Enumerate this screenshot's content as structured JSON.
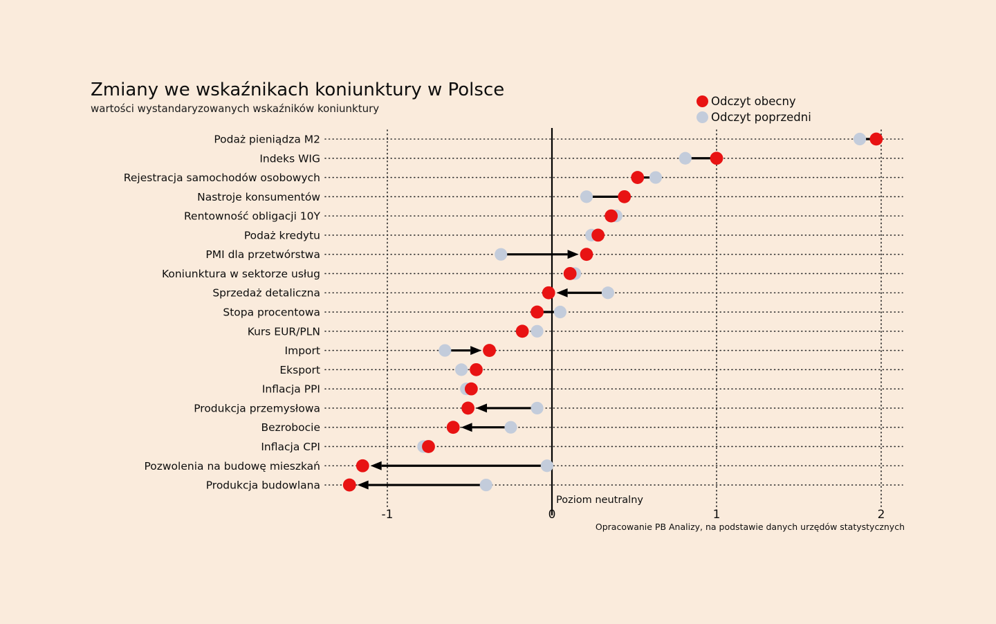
{
  "title": "Zmiany we wskaźnikach koniunktury w Polsce",
  "subtitle": "wartości wystandaryzowanych wskaźników koniunktury",
  "legend": {
    "current_label": "Odczyt obecny",
    "previous_label": "Odczyt poprzedni"
  },
  "zero_line_label": "Poziom neutralny",
  "source_note": "Opracowanie PB Analizy, na podstawie danych urzędów statystycznych",
  "colors": {
    "background": "#FAEBDC",
    "current_dot": "#E81313",
    "previous_dot": "#C3CCDB",
    "connector": "#000000",
    "grid": "#2b2b2b",
    "text": "#0d0d0d"
  },
  "chart_data": {
    "type": "scatter",
    "subtype": "dumbbell-dot-plot",
    "title": "Zmiany we wskaźnikach koniunktury w Polsce",
    "xlabel": "",
    "ylabel": "",
    "xlim": [
      -1.4,
      2.15
    ],
    "x_ticks": [
      -1,
      0,
      1,
      2
    ],
    "grid": "dotted",
    "legend_position": "top-right",
    "categories": [
      "Podaż pieniądza M2",
      "Indeks WIG",
      "Rejestracja samochodów osobowych",
      "Nastroje konsumentów",
      "Rentowność obligacji 10Y",
      "Podaż kredytu",
      "PMI dla przetwórstwa",
      "Koniunktura w sektorze usług",
      "Sprzedaż detaliczna",
      "Stopa procentowa",
      "Kurs EUR/PLN",
      "Import",
      "Eksport",
      "Inflacja PPI",
      "Produkcja przemysłowa",
      "Bezrobocie",
      "Inflacja CPI",
      "Pozwolenia na budowę mieszkań",
      "Produkcja budowlana"
    ],
    "series": [
      {
        "name": "Odczyt obecny",
        "values": [
          1.97,
          1.0,
          0.52,
          0.44,
          0.36,
          0.28,
          0.21,
          0.11,
          -0.02,
          -0.09,
          -0.18,
          -0.38,
          -0.46,
          -0.49,
          -0.51,
          -0.6,
          -0.75,
          -1.15,
          -1.23
        ]
      },
      {
        "name": "Odczyt poprzedni",
        "values": [
          1.87,
          0.81,
          0.63,
          0.21,
          0.39,
          0.24,
          -0.31,
          0.14,
          0.34,
          0.05,
          -0.09,
          -0.65,
          -0.55,
          -0.52,
          -0.09,
          -0.25,
          -0.78,
          -0.03,
          -0.4
        ]
      }
    ],
    "connectors": [
      "line",
      "line",
      "line",
      "line",
      "none",
      "none",
      "arrow",
      "none",
      "arrow",
      "line",
      "none",
      "arrow",
      "none",
      "none",
      "arrow",
      "arrow",
      "none",
      "arrow",
      "arrow"
    ],
    "annotations": [
      "Poziom neutralny"
    ]
  }
}
